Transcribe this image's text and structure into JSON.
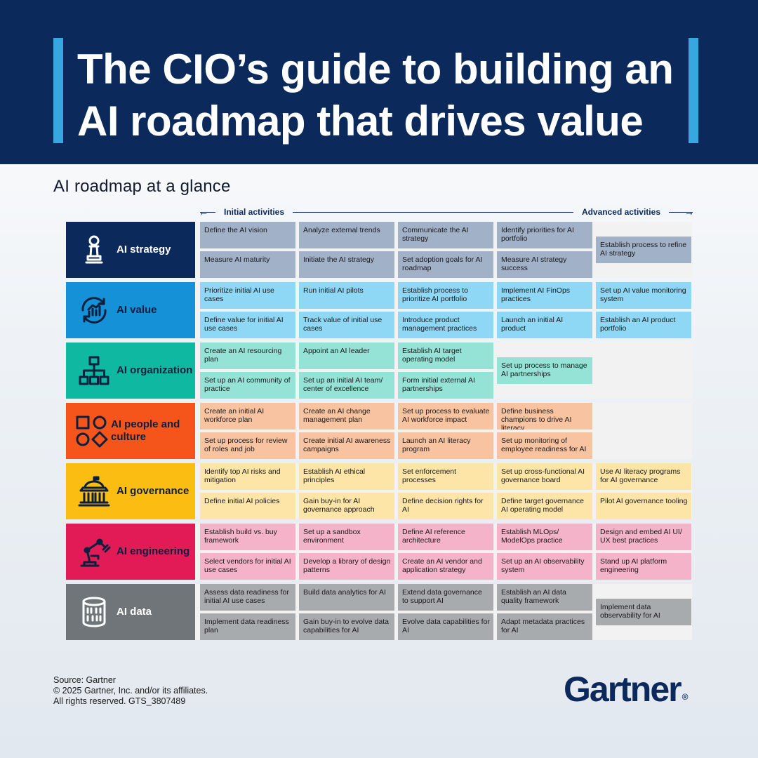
{
  "header": {
    "title_line1": "The CIO’s guide to building an",
    "title_line2": "AI roadmap that drives value"
  },
  "subtitle": "AI roadmap at a glance",
  "axis": {
    "start_label": "Initial activities",
    "end_label": "Advanced activities"
  },
  "rows": [
    {
      "label": "AI strategy",
      "icon": "chess-pawn-icon",
      "colors": {
        "label_bg": "#0b2a5b",
        "label_text": "#ffffff",
        "icon": "#ffffff",
        "cell_bg": "#a1b1c8"
      },
      "cells": [
        [
          "Define the AI vision",
          "Measure AI maturity"
        ],
        [
          "Analyze external trends",
          "Initiate the AI strategy"
        ],
        [
          "Communicate the AI strategy",
          "Set adoption goals for AI roadmap"
        ],
        [
          "Identify priorities for AI portfolio",
          "Measure AI strategy success"
        ],
        [
          "Establish process to refine AI strategy"
        ]
      ]
    },
    {
      "label": "AI value",
      "icon": "value-cycle-chart-icon",
      "colors": {
        "label_bg": "#1591d8",
        "label_text": "#0b1f3e",
        "icon": "#0b1f3e",
        "cell_bg": "#8fd8f5"
      },
      "cells": [
        [
          "Prioritize initial AI use cases",
          "Define value for initial AI use cases"
        ],
        [
          "Run initial AI pilots",
          "Track value of initial use cases"
        ],
        [
          "Establish process to prioritize AI portfolio",
          "Introduce product management practices"
        ],
        [
          "Implement AI FinOps practices",
          "Launch an initial AI product"
        ],
        [
          "Set up AI value monitoring system",
          "Establish an AI product portfolio"
        ]
      ]
    },
    {
      "label": "AI organization",
      "icon": "org-chart-icon",
      "colors": {
        "label_bg": "#0fb8a0",
        "label_text": "#0b1f3e",
        "icon": "#0b1f3e",
        "cell_bg": "#95e3d6"
      },
      "cells": [
        [
          "Create an AI resourcing plan",
          "Set up an AI community of practice"
        ],
        [
          "Appoint an AI leader",
          "Set up an initial AI team/ center of excellence"
        ],
        [
          "Establish AI target operating model",
          "Form initial external AI partnerships"
        ],
        [
          "Set up process to manage AI partnerships"
        ],
        []
      ]
    },
    {
      "label": "AI people and culture",
      "icon": "shapes-icon",
      "colors": {
        "label_bg": "#f5541b",
        "label_text": "#0b1f3e",
        "icon": "#0b1f3e",
        "cell_bg": "#f8c3a1"
      },
      "cells": [
        [
          "Create an initial AI workforce plan",
          "Set up process for review of roles and job"
        ],
        [
          "Create an AI change management plan",
          "Create initial AI awareness campaigns"
        ],
        [
          "Set up process to evaluate AI workforce impact",
          "Launch an AI literacy program"
        ],
        [
          "Define business champions to drive AI literacy",
          "Set up monitoring of employee readiness for AI"
        ],
        []
      ]
    },
    {
      "label": "AI governance",
      "icon": "government-building-icon",
      "colors": {
        "label_bg": "#fbbd12",
        "label_text": "#0b1f3e",
        "icon": "#0b1f3e",
        "cell_bg": "#fde5a8"
      },
      "cells": [
        [
          "Identify top AI risks and mitigation",
          "Define initial AI policies"
        ],
        [
          "Establish AI ethical principles",
          "Gain buy-in for AI governance approach"
        ],
        [
          "Set enforcement processes",
          "Define decision rights for AI"
        ],
        [
          "Set up cross-functional AI governance board",
          "Define target governance AI operating model"
        ],
        [
          "Use AI literacy programs for AI governance",
          "Pilot AI governance tooling"
        ]
      ]
    },
    {
      "label": "AI engineering",
      "icon": "robotic-arm-icon",
      "colors": {
        "label_bg": "#e21a56",
        "label_text": "#0b1f3e",
        "icon": "#0b1f3e",
        "cell_bg": "#f5b3ca"
      },
      "cells": [
        [
          "Establish build vs. buy framework",
          "Select vendors for initial AI use cases"
        ],
        [
          "Set up a sandbox environment",
          "Develop a library of design patterns"
        ],
        [
          "Define AI reference architecture",
          "Create an AI vendor and application strategy"
        ],
        [
          "Establish MLOps/ ModelOps practice",
          "Set up an AI observability system"
        ],
        [
          "Design and embed AI UI/ UX best practices",
          "Stand up AI platform engineering"
        ]
      ]
    },
    {
      "label": "AI data",
      "icon": "binary-database-icon",
      "colors": {
        "label_bg": "#6f7578",
        "label_text": "#ffffff",
        "icon": "#ffffff",
        "cell_bg": "#a7abad"
      },
      "cells": [
        [
          "Assess data readiness for initial AI use cases",
          "Implement data readiness plan"
        ],
        [
          "Build data analytics for AI",
          "Gain buy-in to evolve data capabilities for AI"
        ],
        [
          "Extend data governance to support AI",
          "Evolve data capabilities for AI"
        ],
        [
          "Establish an AI data quality framework",
          "Adapt metadata practices for AI"
        ],
        [
          "Implement data observability for AI"
        ]
      ]
    }
  ],
  "footer": {
    "source": "Source: Gartner",
    "copyright": "© 2025 Gartner, Inc. and/or its affiliates.",
    "rights": "All rights reserved. GTS_3807489"
  },
  "logo": {
    "text": "Gartner",
    "mark": "®"
  }
}
